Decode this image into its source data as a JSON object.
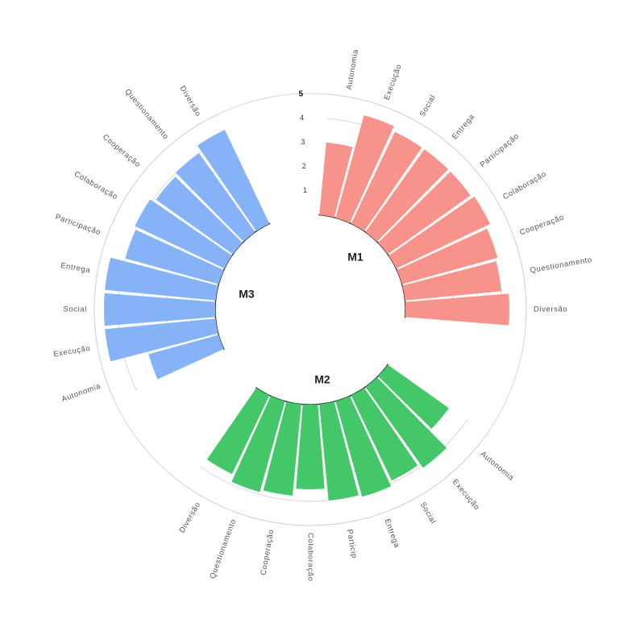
{
  "chart_data": {
    "type": "circular-bar",
    "r_ticks": [
      "1",
      "2",
      "3",
      "4",
      "5"
    ],
    "ylim": [
      0,
      5
    ],
    "grid": true,
    "groups": [
      {
        "name": "M1",
        "color": "#f8938b",
        "categories": [
          "Autonomia",
          "Execução",
          "Social",
          "Entrega",
          "Participação",
          "Colaboração",
          "Cooperação",
          "Questionamento",
          "Diversão"
        ],
        "values": [
          3.0,
          4.4,
          4.2,
          4.2,
          4.2,
          4.3,
          4.1,
          4.0,
          4.3
        ]
      },
      {
        "name": "M2",
        "color": "#44c768",
        "categories": [
          "Autonomia",
          "Execução",
          "Social",
          "Entrega",
          "Particip",
          "Colaboração",
          "Cooperação",
          "Questionamento",
          "Diversão"
        ],
        "values": [
          3.1,
          4.1,
          3.9,
          4.1,
          4.0,
          3.5,
          3.8,
          3.9,
          3.6
        ]
      },
      {
        "name": "M3",
        "color": "#86b3f8",
        "categories": [
          "Autonomia",
          "Execução",
          "Social",
          "Entrega",
          "Participação",
          "Colaboração",
          "Cooperação",
          "Questionamento",
          "Diversão"
        ],
        "values": [
          3.0,
          4.6,
          4.6,
          4.6,
          4.0,
          4.1,
          3.9,
          4.0,
          4.3
        ]
      }
    ]
  }
}
